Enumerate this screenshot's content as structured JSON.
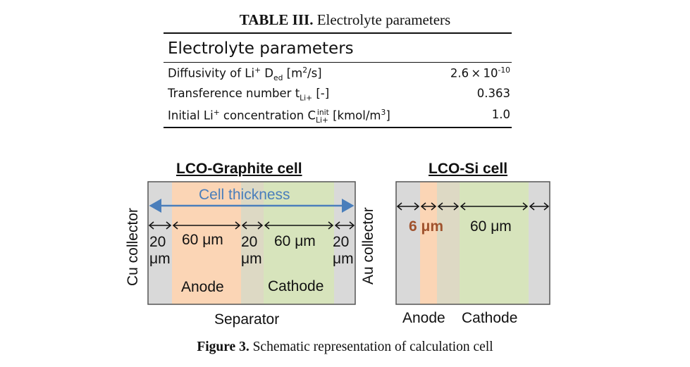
{
  "table": {
    "caption_label": "TABLE III.",
    "caption_text": "Electrolyte parameters",
    "header": "Electrolyte parameters",
    "rows": [
      {
        "name": "Diffusivity of Li",
        "name_sup": "+",
        "symbol": "D",
        "symbol_sub": "ed",
        "unit": "[m",
        "unit_sup": "2",
        "unit_end": "/s]",
        "value_base": "2.6 × 10",
        "value_sup": "-10"
      },
      {
        "name": "Transference number t",
        "sub": "Li+",
        "unit": "[-]",
        "value": "0.363"
      },
      {
        "name": "Initial Li",
        "name_sup": "+",
        "symbol": "concentration C",
        "symbol_sub": "Li+",
        "symbol_sup": "init",
        "unit": "[kmol/m",
        "unit_sup": "3",
        "unit_end": "]",
        "value": "1.0"
      }
    ]
  },
  "figure": {
    "caption_label": "Figure 3.",
    "caption_text": "Schematic representation of calculation cell",
    "graphite_cell": {
      "title": "LCO-Graphite cell",
      "thickness_label": "Cell thickness",
      "left_collector": "Cu collector",
      "right_collector": "Au collector",
      "collector_thickness_a": "20",
      "collector_thickness_b": "μm",
      "anode_thickness": "60 μm",
      "sep_thickness_a": "20",
      "sep_thickness_b": "μm",
      "cathode_thickness": "60 μm",
      "right_thickness_a": "20",
      "right_thickness_b": "μm",
      "anode_label": "Anode",
      "cathode_label": "Cathode",
      "separator_label": "Separator"
    },
    "si_cell": {
      "title": "LCO-Si cell",
      "anode_thickness": "6 μm",
      "cathode_thickness": "60 μm",
      "anode_label": "Anode",
      "cathode_label": "Cathode"
    },
    "colors": {
      "collector": "#d9d9d9",
      "anode": "#fbd5b5",
      "separator": "#ddd9c4",
      "cathode": "#d7e4bc",
      "thickness_arrow": "#4a7ebb",
      "si_anode_text": "#a0522d"
    }
  }
}
